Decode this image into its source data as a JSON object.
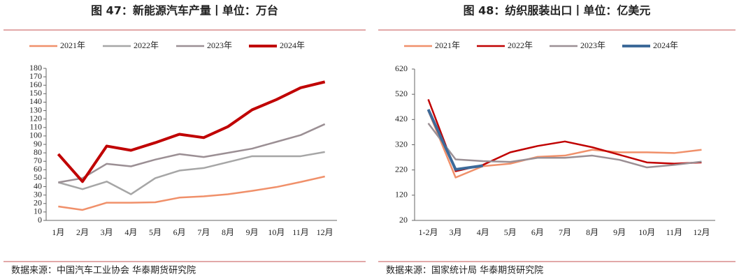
{
  "chart_data": [
    {
      "type": "line",
      "title": "图 47：新能源汽车产量丨单位：万台",
      "categories": [
        "1月",
        "2月",
        "3月",
        "4月",
        "5月",
        "6月",
        "7月",
        "8月",
        "9月",
        "10月",
        "11月",
        "12月"
      ],
      "series": [
        {
          "name": "2021年",
          "color": "#f0906a",
          "values": [
            16.5,
            12.4,
            21,
            21,
            21.5,
            27,
            28.5,
            31,
            35,
            39.5,
            45.5,
            52
          ]
        },
        {
          "name": "2022年",
          "color": "#a6a6a6",
          "values": [
            45,
            37,
            46,
            31,
            50,
            59,
            62,
            69,
            76,
            76,
            76,
            81
          ]
        },
        {
          "name": "2023年",
          "color": "#9b8f94",
          "values": [
            45,
            50,
            67,
            64,
            72,
            78.5,
            75,
            80,
            85,
            93,
            101,
            114
          ]
        },
        {
          "name": "2024年",
          "color": "#c00000",
          "values": [
            78.5,
            46,
            88,
            83,
            92,
            102,
            98,
            111,
            131,
            143,
            157,
            164
          ]
        }
      ],
      "ylim": [
        0,
        180
      ],
      "yticks": [
        0,
        10,
        20,
        30,
        40,
        50,
        60,
        70,
        80,
        90,
        100,
        110,
        120,
        130,
        140,
        150,
        160,
        170,
        180
      ],
      "source": "数据来源：中国汽车工业协会 华泰期货研究院"
    },
    {
      "type": "line",
      "title": "图 48：纺织服装出口丨单位：亿美元",
      "categories": [
        "1-2月",
        "3月",
        "4月",
        "5月",
        "6月",
        "7月",
        "8月",
        "9月",
        "10月",
        "11月",
        "12月"
      ],
      "series": [
        {
          "name": "2021年",
          "color": "#f0906a",
          "values": [
            455,
            190,
            235,
            245,
            272,
            277,
            300,
            290,
            290,
            287,
            300
          ]
        },
        {
          "name": "2022年",
          "color": "#c00000",
          "values": [
            500,
            215,
            240,
            290,
            315,
            333,
            310,
            280,
            250,
            245,
            250
          ]
        },
        {
          "name": "2023年",
          "color": "#9b8f94",
          "values": [
            405,
            262,
            255,
            252,
            268,
            268,
            277,
            260,
            230,
            240,
            253
          ]
        },
        {
          "name": "2024年",
          "color": "#3d6a99",
          "values": [
            460,
            222,
            237,
            null,
            null,
            null,
            null,
            null,
            null,
            null,
            null
          ]
        }
      ],
      "ylim": [
        20,
        620
      ],
      "yticks": [
        20,
        120,
        220,
        320,
        420,
        520,
        620
      ],
      "source": "数据来源：国家统计局 华泰期货研究院"
    }
  ]
}
